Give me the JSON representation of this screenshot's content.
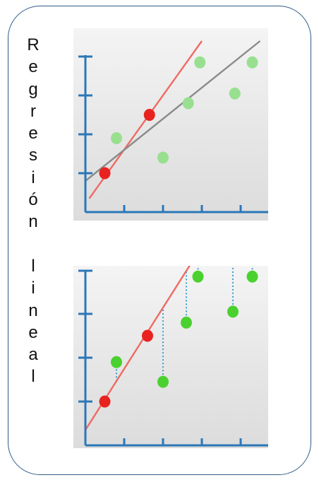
{
  "title": "Regresión lineal",
  "colors": {
    "frame": "#2f5a85",
    "axis": "#2b77b8",
    "fit_line": "#ee6b63",
    "gray_line": "#8a8a8a",
    "red_point": "#e8231f",
    "green_point_light": "#98e090",
    "green_point": "#4bd12f",
    "residual": "#3aa0d0"
  },
  "chart_data": [
    {
      "type": "scatter",
      "title": "",
      "xlabel": "",
      "ylabel": "",
      "xlim": [
        0,
        5
      ],
      "ylim": [
        0,
        4
      ],
      "grid": false,
      "series": [
        {
          "role": "red_points",
          "points": [
            [
              0.5,
              1.0
            ],
            [
              1.65,
              2.5
            ]
          ]
        },
        {
          "role": "green_points",
          "points": [
            [
              0.8,
              1.9
            ],
            [
              2.0,
              1.4
            ],
            [
              2.65,
              2.8
            ],
            [
              2.95,
              3.85
            ],
            [
              3.85,
              3.05
            ],
            [
              4.3,
              3.85
            ]
          ]
        }
      ],
      "lines": [
        {
          "role": "fit_line",
          "from": [
            0.1,
            0.35
          ],
          "to": [
            3.0,
            4.4
          ]
        },
        {
          "role": "gray_line",
          "from": [
            0.0,
            0.8
          ],
          "to": [
            4.5,
            4.4
          ]
        }
      ]
    },
    {
      "type": "scatter",
      "title": "",
      "xlabel": "",
      "ylabel": "",
      "xlim": [
        0,
        5
      ],
      "ylim": [
        0,
        4
      ],
      "grid": false,
      "series": [
        {
          "role": "red_points",
          "points": [
            [
              0.5,
              1.0
            ],
            [
              1.6,
              2.5
            ]
          ]
        },
        {
          "role": "green_points",
          "points": [
            [
              0.8,
              1.9
            ],
            [
              2.0,
              1.45
            ],
            [
              2.6,
              2.8
            ],
            [
              2.9,
              3.85
            ],
            [
              3.8,
              3.05
            ],
            [
              4.3,
              3.85
            ]
          ]
        }
      ],
      "lines": [
        {
          "role": "fit_line",
          "from": [
            0.0,
            0.35
          ],
          "to": [
            2.9,
            4.4
          ]
        }
      ],
      "residuals": true
    }
  ]
}
